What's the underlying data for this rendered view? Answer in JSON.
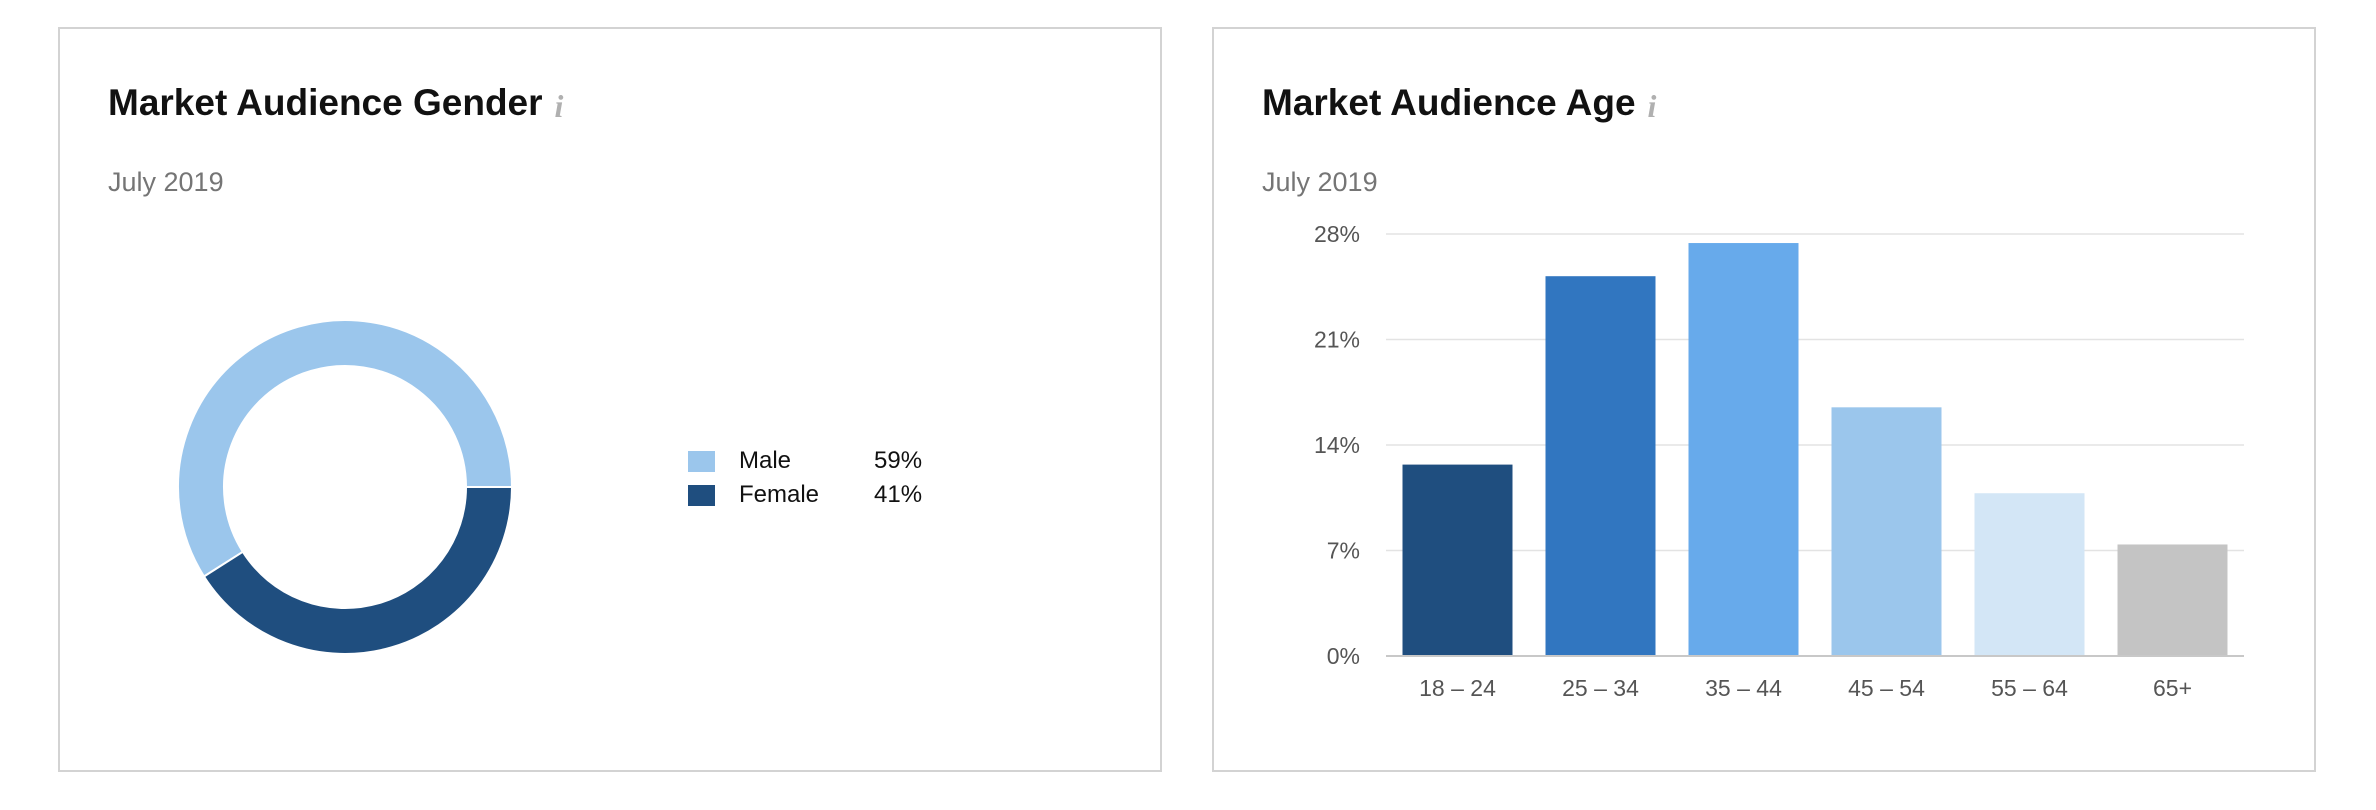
{
  "gender_card": {
    "title": "Market Audience Gender",
    "subtitle": "July 2019",
    "info_icon": "info-icon"
  },
  "age_card": {
    "title": "Market Audience Age",
    "subtitle": "July 2019",
    "info_icon": "info-icon"
  },
  "chart_data": [
    {
      "type": "pie",
      "variant": "donut",
      "title": "Market Audience Gender",
      "subtitle": "July 2019",
      "categories": [
        "Male",
        "Female"
      ],
      "values": [
        59,
        41
      ],
      "value_labels": [
        "59%",
        "41%"
      ],
      "colors": [
        "#9bc6ec",
        "#1f4e7f"
      ],
      "legend_position": "right"
    },
    {
      "type": "bar",
      "title": "Market Audience Age",
      "subtitle": "July 2019",
      "categories": [
        "18 – 24",
        "25 – 34",
        "35 – 44",
        "45 – 54",
        "55 – 64",
        "65+"
      ],
      "values": [
        12.7,
        25.2,
        27.4,
        16.5,
        10.8,
        7.4
      ],
      "colors": [
        "#1f4e7f",
        "#3176c0",
        "#67aaeb",
        "#9bc6ec",
        "#d3e6f6",
        "#c4c4c4"
      ],
      "ylim": [
        0,
        28
      ],
      "yticks": [
        "0%",
        "7%",
        "14%",
        "21%",
        "28%"
      ],
      "ytick_values": [
        0,
        7,
        14,
        21,
        28
      ],
      "xlabel": "",
      "ylabel": "",
      "grid": true
    }
  ]
}
